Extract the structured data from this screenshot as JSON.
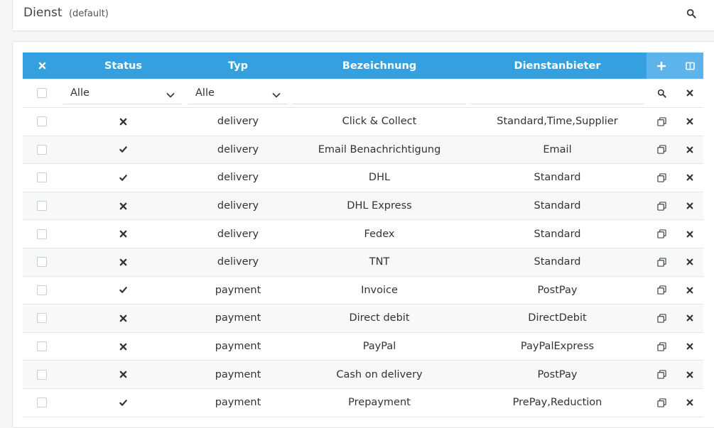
{
  "header": {
    "title": "Dienst",
    "subtitle": "(default)"
  },
  "columns": {
    "status": "Status",
    "typ": "Typ",
    "bezeichnung": "Bezeichnung",
    "dienstanbieter": "Dienstanbieter"
  },
  "filters": {
    "status": "Alle",
    "typ": "Alle",
    "bezeichnung": "",
    "dienstanbieter": ""
  },
  "rows": [
    {
      "active": false,
      "typ": "delivery",
      "bezeichnung": "Click & Collect",
      "dienstanbieter": "Standard,Time,Supplier"
    },
    {
      "active": true,
      "typ": "delivery",
      "bezeichnung": "Email Benachrichtigung",
      "dienstanbieter": "Email"
    },
    {
      "active": true,
      "typ": "delivery",
      "bezeichnung": "DHL",
      "dienstanbieter": "Standard"
    },
    {
      "active": false,
      "typ": "delivery",
      "bezeichnung": "DHL Express",
      "dienstanbieter": "Standard"
    },
    {
      "active": false,
      "typ": "delivery",
      "bezeichnung": "Fedex",
      "dienstanbieter": "Standard"
    },
    {
      "active": false,
      "typ": "delivery",
      "bezeichnung": "TNT",
      "dienstanbieter": "Standard"
    },
    {
      "active": true,
      "typ": "payment",
      "bezeichnung": "Invoice",
      "dienstanbieter": "PostPay"
    },
    {
      "active": false,
      "typ": "payment",
      "bezeichnung": "Direct debit",
      "dienstanbieter": "DirectDebit"
    },
    {
      "active": false,
      "typ": "payment",
      "bezeichnung": "PayPal",
      "dienstanbieter": "PayPalExpress"
    },
    {
      "active": false,
      "typ": "payment",
      "bezeichnung": "Cash on delivery",
      "dienstanbieter": "PostPay"
    },
    {
      "active": true,
      "typ": "payment",
      "bezeichnung": "Prepayment",
      "dienstanbieter": "PrePay,Reduction"
    }
  ],
  "icons": {
    "header_search": "search-icon",
    "clear_selection": "close-icon",
    "add": "plus-icon",
    "columns": "columns-icon",
    "filter_search": "search-icon",
    "filter_clear": "close-icon",
    "row_copy": "copy-icon",
    "row_delete": "close-icon",
    "status_active": "check-icon",
    "status_inactive": "close-icon"
  },
  "colors": {
    "header_bg": "#34a0e0",
    "header_action_bg": "#5db4ea"
  }
}
